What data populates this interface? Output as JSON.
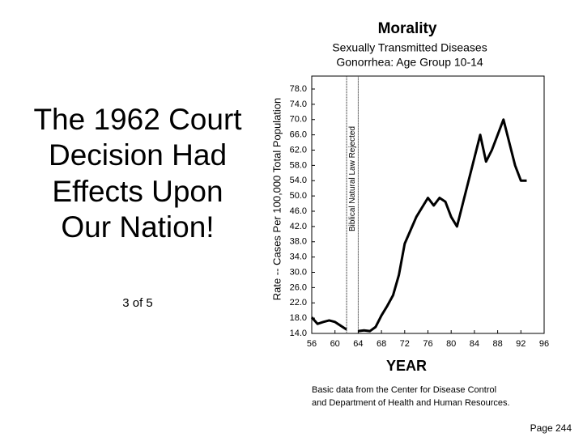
{
  "slide": {
    "heading": [
      "The 1962 Court",
      "Decision Had",
      "Effects Upon",
      "Our Nation!"
    ],
    "count": "3 of 5",
    "page_number": "Page 244"
  },
  "chart_data": {
    "type": "line",
    "title": "Morality",
    "subtitle": [
      "Sexually Transmitted Diseases",
      "Gonorrhea: Age Group 10-14"
    ],
    "x_label": "YEAR",
    "y_label": "Rate -- Cases Per 100,000 Total Population",
    "source": [
      "Basic data from the Center for Disease Control",
      "and Department of Health and Human Resources."
    ],
    "annotations": [
      {
        "text": "Biblical Natural Law Rejected",
        "x": [
          62,
          64
        ]
      }
    ],
    "x": [
      56,
      57,
      58,
      59,
      60,
      61,
      62,
      63,
      64,
      65,
      66,
      67,
      68,
      69,
      70,
      71,
      72,
      73,
      74,
      75,
      76,
      77,
      78,
      79,
      80,
      81,
      82,
      83,
      84,
      85,
      86,
      87,
      88,
      89,
      90,
      91,
      92,
      93
    ],
    "series": [
      {
        "name": "Gonorrhea rate",
        "color": "#000000",
        "values": [
          18.2,
          16.5,
          17,
          17.4,
          17,
          16,
          15,
          null,
          14.6,
          14.8,
          14.6,
          15.7,
          18.7,
          21.2,
          24,
          29.3,
          37.5,
          41,
          44.5,
          47,
          49.5,
          47.5,
          49.5,
          48.5,
          44.5,
          42,
          48,
          54,
          60,
          66,
          59,
          62,
          66,
          70,
          64,
          58,
          54,
          54
        ]
      }
    ],
    "xlim": [
      56,
      96
    ],
    "xticks": [
      56,
      60,
      64,
      68,
      72,
      76,
      80,
      84,
      88,
      92,
      96
    ],
    "ylim": [
      14,
      78
    ],
    "yticks": [
      {
        "value": 14,
        "label": "14.0"
      },
      {
        "value": 18,
        "label": "18.0"
      },
      {
        "value": 22,
        "label": "22.0"
      },
      {
        "value": 26,
        "label": "26.0"
      },
      {
        "value": 30,
        "label": "30.0"
      },
      {
        "value": 34,
        "label": "34.0"
      },
      {
        "value": 38,
        "label": "38.0"
      },
      {
        "value": 42,
        "label": "42.0"
      },
      {
        "value": 46,
        "label": "46.0"
      },
      {
        "value": 50,
        "label": "50.0"
      },
      {
        "value": 54,
        "label": "54.0"
      },
      {
        "value": 58,
        "label": "58.0"
      },
      {
        "value": 62,
        "label": "62.0"
      },
      {
        "value": 66,
        "label": "66.0"
      },
      {
        "value": 70,
        "label": "70.0"
      },
      {
        "value": 74,
        "label": "74.0"
      },
      {
        "value": 78,
        "label": "78.0"
      }
    ],
    "grid": false
  }
}
